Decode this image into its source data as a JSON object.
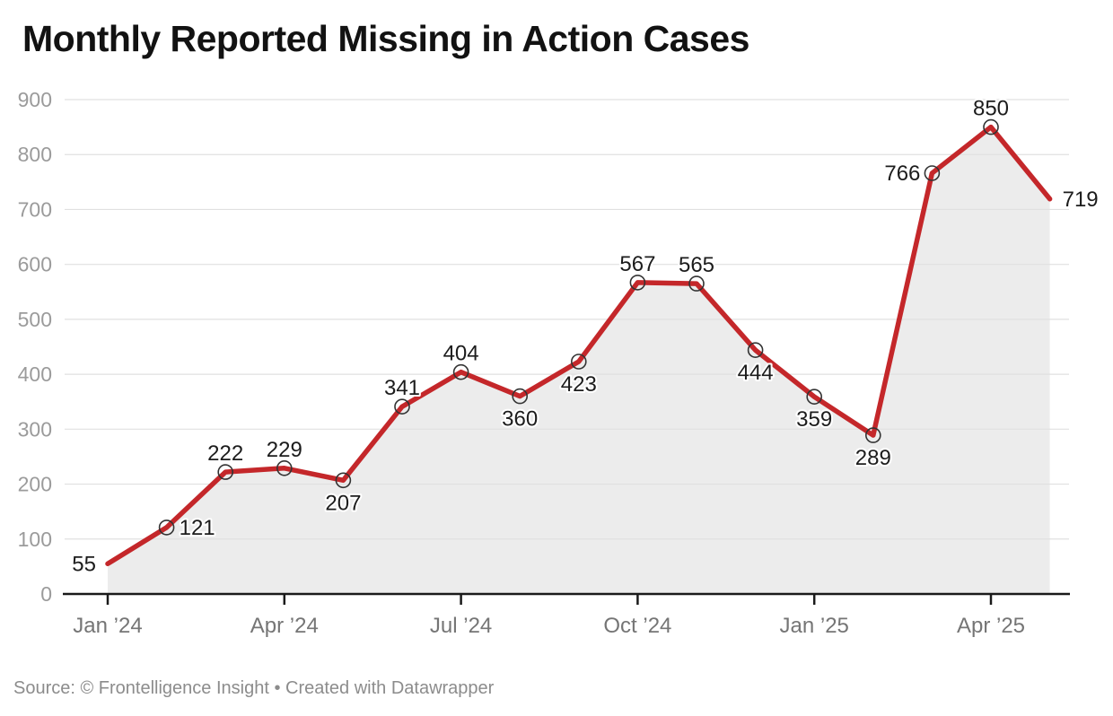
{
  "title": "Monthly Reported Missing in Action Cases",
  "footer": {
    "text": "Source: © Frontelligence Insight • Created with Datawrapper"
  },
  "colors": {
    "line": "#c4272a",
    "area": "#ececec",
    "grid": "#e0e0e0",
    "axis": "#1a1a1a",
    "marker_stroke": "#333333",
    "value_label": "#1c1c1c",
    "x_tick_label": "#757575",
    "y_tick_label": "#9b9b9b",
    "title_color": "#121212",
    "footer_color": "#8c8c8c",
    "background": "#ffffff"
  },
  "chart_data": {
    "type": "line",
    "title": "Monthly Reported Missing in Action Cases",
    "values": [
      55,
      121,
      222,
      229,
      207,
      341,
      404,
      360,
      423,
      567,
      565,
      444,
      359,
      289,
      766,
      850,
      719
    ],
    "x_ticks": [
      {
        "index": 0,
        "label": "Jan ’24"
      },
      {
        "index": 3,
        "label": "Apr ’24"
      },
      {
        "index": 6,
        "label": "Jul ’24"
      },
      {
        "index": 9,
        "label": "Oct ’24"
      },
      {
        "index": 12,
        "label": "Jan ’25"
      },
      {
        "index": 15,
        "label": "Apr ’25"
      }
    ],
    "y_ticks": [
      0,
      100,
      200,
      300,
      400,
      500,
      600,
      700,
      800,
      900
    ],
    "ylim": [
      0,
      900
    ],
    "grid": "horizontal",
    "legend": "none",
    "area_fill": true,
    "data_labels_shown": true,
    "label_placement": [
      "left",
      "right",
      "above",
      "above",
      "below",
      "above",
      "above",
      "below",
      "below",
      "above",
      "above",
      "below",
      "below",
      "below",
      "left",
      "above",
      "right"
    ],
    "marker_indices": [
      1,
      2,
      3,
      4,
      5,
      6,
      7,
      8,
      9,
      10,
      11,
      12,
      13,
      14,
      15
    ]
  }
}
